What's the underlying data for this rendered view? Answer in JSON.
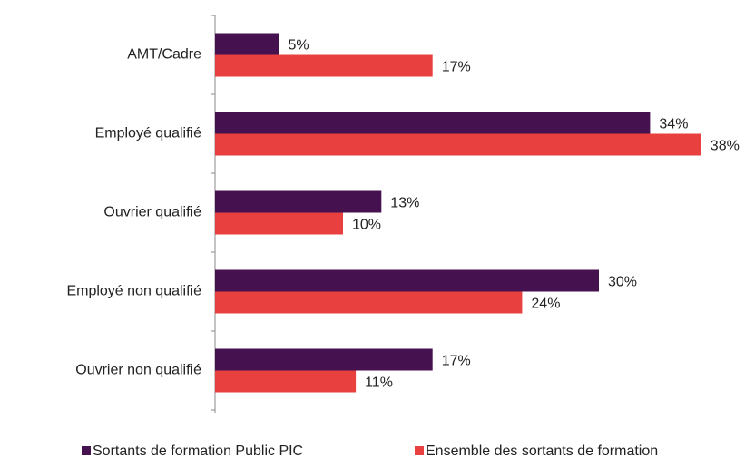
{
  "chart_data": {
    "type": "bar",
    "orientation": "horizontal",
    "categories": [
      "AMT/Cadre",
      "Employé qualifié",
      "Ouvrier qualifié",
      "Employé non qualifié",
      "Ouvrier non qualifié"
    ],
    "series": [
      {
        "name": "Sortants de formation Public PIC",
        "color": "#46114f",
        "values": [
          5,
          34,
          13,
          30,
          17
        ],
        "value_labels": [
          "5%",
          "34%",
          "13%",
          "30%",
          "17%"
        ]
      },
      {
        "name": "Ensemble des sortants de formation",
        "color": "#e8403f",
        "values": [
          17,
          38,
          10,
          24,
          11
        ],
        "value_labels": [
          "17%",
          "38%",
          "10%",
          "24%",
          "11%"
        ]
      }
    ],
    "xlim": [
      0,
      40
    ],
    "legend": "bottom"
  }
}
